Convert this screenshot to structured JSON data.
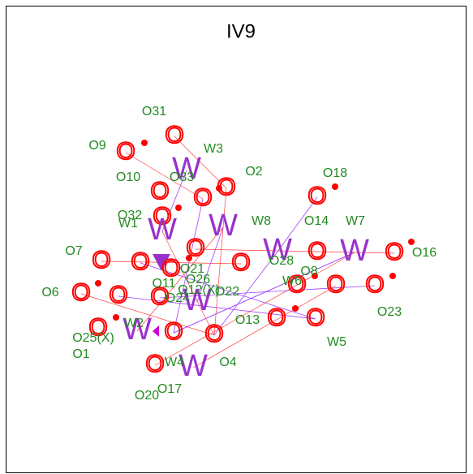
{
  "title": "IV9",
  "labels": [
    "O31",
    "O9",
    "W3",
    "O10",
    "O33",
    "O2",
    "O18",
    "O32",
    "W1",
    "W8",
    "O14",
    "W7",
    "O28",
    "O16",
    "O7",
    "O21",
    "O6",
    "O11",
    "O26",
    "O12(X)",
    "O22",
    "O24",
    "W6",
    "O8",
    "O23",
    "O13",
    "W5",
    "O25(X)",
    "W2",
    "O1",
    "O4",
    "W4",
    "O17",
    "O20"
  ],
  "glyphs": [
    "O",
    "O",
    "W",
    "O",
    "O",
    "O",
    "O",
    "O",
    "W",
    "W",
    "W",
    "O",
    "W",
    "O",
    "O",
    "O",
    "O",
    "O",
    "O",
    "O",
    "O",
    "O",
    "W",
    "O",
    "O",
    "O",
    "O",
    "O",
    "O",
    "W",
    "O",
    "O",
    "O",
    "W",
    "O",
    "O",
    "O"
  ]
}
